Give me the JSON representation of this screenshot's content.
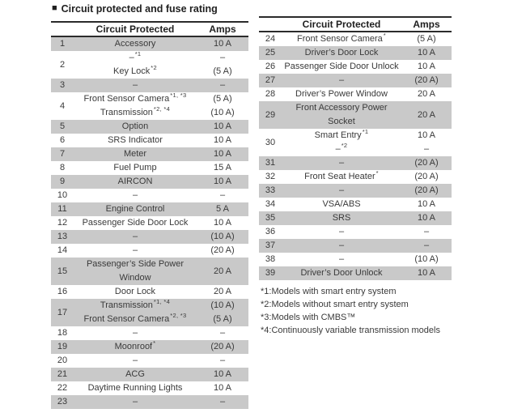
{
  "title": {
    "bullet": "■",
    "text": "Circuit protected and fuse rating"
  },
  "colors": {
    "row_shade": "#c9c9c9",
    "rule_line": "#2b2b2b",
    "text": "#3a3a3a"
  },
  "tables": [
    {
      "headers": {
        "circuit": "Circuit Protected",
        "amps": "Amps"
      },
      "rows": [
        {
          "n": "1",
          "shaded": true,
          "c": [
            {
              "t": "Accessory"
            }
          ],
          "a": [
            "10 A"
          ]
        },
        {
          "n": "2",
          "shaded": false,
          "c": [
            {
              "t": "–",
              "s": "*1"
            },
            {
              "t": "Key Lock",
              "s": "*2"
            }
          ],
          "a": [
            "–",
            "(5 A)"
          ]
        },
        {
          "n": "3",
          "shaded": true,
          "c": [
            {
              "t": "–"
            }
          ],
          "a": [
            "–"
          ]
        },
        {
          "n": "4",
          "shaded": false,
          "c": [
            {
              "t": "Front Sensor Camera",
              "s": "*1, *3"
            },
            {
              "t": "Transmission",
              "s": "*2, *4"
            }
          ],
          "a": [
            "(5 A)",
            "(10 A)"
          ]
        },
        {
          "n": "5",
          "shaded": true,
          "c": [
            {
              "t": "Option"
            }
          ],
          "a": [
            "10 A"
          ]
        },
        {
          "n": "6",
          "shaded": false,
          "c": [
            {
              "t": "SRS Indicator"
            }
          ],
          "a": [
            "10 A"
          ]
        },
        {
          "n": "7",
          "shaded": true,
          "c": [
            {
              "t": "Meter"
            }
          ],
          "a": [
            "10 A"
          ]
        },
        {
          "n": "8",
          "shaded": false,
          "c": [
            {
              "t": "Fuel Pump"
            }
          ],
          "a": [
            "15 A"
          ]
        },
        {
          "n": "9",
          "shaded": true,
          "c": [
            {
              "t": "AIRCON"
            }
          ],
          "a": [
            "10 A"
          ]
        },
        {
          "n": "10",
          "shaded": false,
          "c": [
            {
              "t": "–"
            }
          ],
          "a": [
            "–"
          ]
        },
        {
          "n": "11",
          "shaded": true,
          "c": [
            {
              "t": "Engine Control"
            }
          ],
          "a": [
            "5 A"
          ]
        },
        {
          "n": "12",
          "shaded": false,
          "c": [
            {
              "t": "Passenger Side Door Lock"
            }
          ],
          "a": [
            "10 A"
          ]
        },
        {
          "n": "13",
          "shaded": true,
          "c": [
            {
              "t": "–"
            }
          ],
          "a": [
            "(10 A)"
          ]
        },
        {
          "n": "14",
          "shaded": false,
          "c": [
            {
              "t": "–"
            }
          ],
          "a": [
            "(20 A)"
          ]
        },
        {
          "n": "15",
          "shaded": true,
          "c": [
            {
              "t": "Passenger’s Side Power"
            },
            {
              "t": "Window"
            }
          ],
          "a": [
            "20 A"
          ]
        },
        {
          "n": "16",
          "shaded": false,
          "c": [
            {
              "t": "Door Lock"
            }
          ],
          "a": [
            "20 A"
          ]
        },
        {
          "n": "17",
          "shaded": true,
          "c": [
            {
              "t": "Transmission",
              "s": "*1, *4"
            },
            {
              "t": "Front Sensor Camera",
              "s": "*2, *3"
            }
          ],
          "a": [
            "(10 A)",
            "(5 A)"
          ]
        },
        {
          "n": "18",
          "shaded": false,
          "c": [
            {
              "t": "–"
            }
          ],
          "a": [
            "–"
          ]
        },
        {
          "n": "19",
          "shaded": true,
          "c": [
            {
              "t": "Moonroof",
              "s": "*"
            }
          ],
          "a": [
            "(20 A)"
          ]
        },
        {
          "n": "20",
          "shaded": false,
          "c": [
            {
              "t": "–"
            }
          ],
          "a": [
            "–"
          ]
        },
        {
          "n": "21",
          "shaded": true,
          "c": [
            {
              "t": "ACG"
            }
          ],
          "a": [
            "10 A"
          ]
        },
        {
          "n": "22",
          "shaded": false,
          "c": [
            {
              "t": "Daytime Running Lights"
            }
          ],
          "a": [
            "10 A"
          ]
        },
        {
          "n": "23",
          "shaded": true,
          "c": [
            {
              "t": "–"
            }
          ],
          "a": [
            "–"
          ]
        }
      ]
    },
    {
      "headers": {
        "circuit": "Circuit Protected",
        "amps": "Amps"
      },
      "rows": [
        {
          "n": "24",
          "shaded": false,
          "c": [
            {
              "t": "Front Sensor Camera",
              "s": "*"
            }
          ],
          "a": [
            "(5 A)"
          ]
        },
        {
          "n": "25",
          "shaded": true,
          "c": [
            {
              "t": "Driver’s Door Lock"
            }
          ],
          "a": [
            "10 A"
          ]
        },
        {
          "n": "26",
          "shaded": false,
          "c": [
            {
              "t": "Passenger Side Door Unlock"
            }
          ],
          "a": [
            "10 A"
          ]
        },
        {
          "n": "27",
          "shaded": true,
          "c": [
            {
              "t": "–"
            }
          ],
          "a": [
            "(20 A)"
          ]
        },
        {
          "n": "28",
          "shaded": false,
          "c": [
            {
              "t": "Driver’s Power Window"
            }
          ],
          "a": [
            "20 A"
          ]
        },
        {
          "n": "29",
          "shaded": true,
          "c": [
            {
              "t": "Front Accessory Power"
            },
            {
              "t": "Socket"
            }
          ],
          "a": [
            "20 A"
          ]
        },
        {
          "n": "30",
          "shaded": false,
          "c": [
            {
              "t": "Smart Entry",
              "s": "*1"
            },
            {
              "t": "–",
              "s": "*2"
            }
          ],
          "a": [
            "10 A",
            "–"
          ]
        },
        {
          "n": "31",
          "shaded": true,
          "c": [
            {
              "t": "–"
            }
          ],
          "a": [
            "(20 A)"
          ]
        },
        {
          "n": "32",
          "shaded": false,
          "c": [
            {
              "t": "Front Seat Heater",
              "s": "*"
            }
          ],
          "a": [
            "(20 A)"
          ]
        },
        {
          "n": "33",
          "shaded": true,
          "c": [
            {
              "t": "–"
            }
          ],
          "a": [
            "(20 A)"
          ]
        },
        {
          "n": "34",
          "shaded": false,
          "c": [
            {
              "t": "VSA/ABS"
            }
          ],
          "a": [
            "10 A"
          ]
        },
        {
          "n": "35",
          "shaded": true,
          "c": [
            {
              "t": "SRS"
            }
          ],
          "a": [
            "10 A"
          ]
        },
        {
          "n": "36",
          "shaded": false,
          "c": [
            {
              "t": "–"
            }
          ],
          "a": [
            "–"
          ]
        },
        {
          "n": "37",
          "shaded": true,
          "c": [
            {
              "t": "–"
            }
          ],
          "a": [
            "–"
          ]
        },
        {
          "n": "38",
          "shaded": false,
          "c": [
            {
              "t": "–"
            }
          ],
          "a": [
            "(10 A)"
          ]
        },
        {
          "n": "39",
          "shaded": true,
          "c": [
            {
              "t": "Driver’s Door Unlock"
            }
          ],
          "a": [
            "10 A"
          ]
        }
      ]
    }
  ],
  "footnotes": [
    {
      "label": "*1:",
      "text": "Models with smart entry system"
    },
    {
      "label": "*2:",
      "text": "Models without smart entry system"
    },
    {
      "label": "*3:",
      "text": "Models with CMBS™"
    },
    {
      "label": "*4:",
      "text": "Continuously variable transmission models"
    }
  ]
}
